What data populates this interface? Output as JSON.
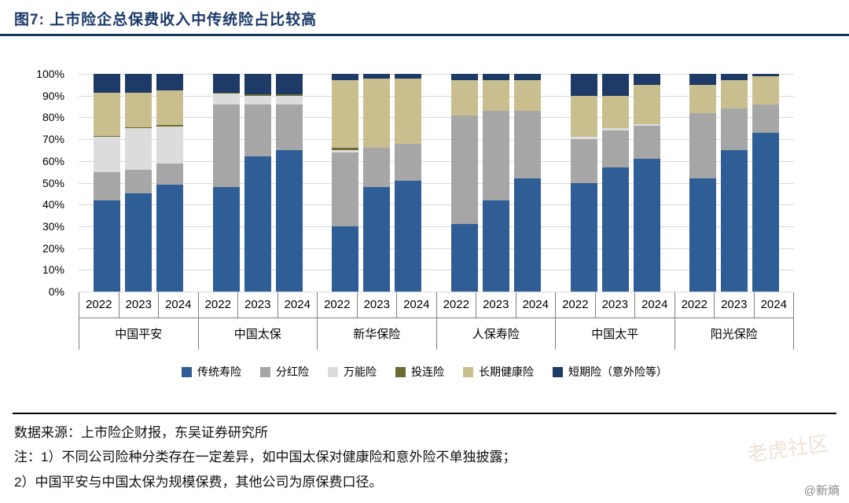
{
  "header": {
    "title": "图7:  上市险企总保费收入中传统险占比较高"
  },
  "chart_data": {
    "type": "bar",
    "variant": "stacked-100-percent",
    "title": "上市险企总保费收入中传统险占比较高",
    "groups": [
      "中国平安",
      "中国太保",
      "新华保险",
      "人保寿险",
      "中国太平",
      "阳光保险"
    ],
    "years": [
      "2022",
      "2023",
      "2024"
    ],
    "yticks": [
      "0%",
      "10%",
      "20%",
      "30%",
      "40%",
      "50%",
      "60%",
      "70%",
      "80%",
      "90%",
      "100%"
    ],
    "ylim": [
      0,
      100
    ],
    "grid": true,
    "legend_position": "bottom",
    "series": [
      {
        "name": "传统寿险",
        "color": "#2e5e95",
        "values": [
          [
            42,
            45,
            49
          ],
          [
            48,
            62,
            65
          ],
          [
            30,
            48,
            51
          ],
          [
            31,
            42,
            52
          ],
          [
            50,
            57,
            61
          ],
          [
            52,
            65,
            73
          ]
        ]
      },
      {
        "name": "分红险",
        "color": "#a6a6a6",
        "values": [
          [
            13,
            11,
            10
          ],
          [
            38,
            24,
            21
          ],
          [
            34,
            18,
            17
          ],
          [
            50,
            41,
            31
          ],
          [
            20,
            17,
            15
          ],
          [
            30,
            19,
            13
          ]
        ]
      },
      {
        "name": "万能险",
        "color": "#dcdcdc",
        "values": [
          [
            16,
            19,
            17
          ],
          [
            5,
            4,
            4
          ],
          [
            1,
            0,
            0
          ],
          [
            0,
            0,
            0
          ],
          [
            1,
            1,
            1
          ],
          [
            0,
            0,
            0
          ]
        ]
      },
      {
        "name": "投连险",
        "color": "#6c6c35",
        "values": [
          [
            0.5,
            0.5,
            0.5
          ],
          [
            0.5,
            0.5,
            0.5
          ],
          [
            1,
            0,
            0
          ],
          [
            0,
            0,
            0
          ],
          [
            0,
            0,
            0
          ],
          [
            0,
            0,
            0
          ]
        ]
      },
      {
        "name": "长期健康险",
        "color": "#c9bf8e",
        "values": [
          [
            20,
            16,
            16
          ],
          [
            0,
            0,
            0
          ],
          [
            31,
            32,
            30
          ],
          [
            16,
            14,
            14
          ],
          [
            19,
            15,
            18
          ],
          [
            13,
            13,
            13
          ]
        ]
      },
      {
        "name": "短期险（意外险等）",
        "color": "#1e3a66",
        "values": [
          [
            8.5,
            8.5,
            7.5
          ],
          [
            8.5,
            9.5,
            9.5
          ],
          [
            3,
            2,
            2
          ],
          [
            3,
            3,
            3
          ],
          [
            10,
            10,
            5
          ],
          [
            5,
            3,
            1
          ]
        ]
      }
    ]
  },
  "footer": {
    "source": "数据来源：上市险企财报，东吴证券研究所",
    "note1": "注：1）不同公司险种分类存在一定差异，如中国太保对健康险和意外险不单独披露；",
    "note2": "2）中国平安与中国太保为规模保费，其他公司为原保费口径。"
  },
  "watermarks": {
    "brand": "@新熵",
    "community": "老虎社区"
  }
}
